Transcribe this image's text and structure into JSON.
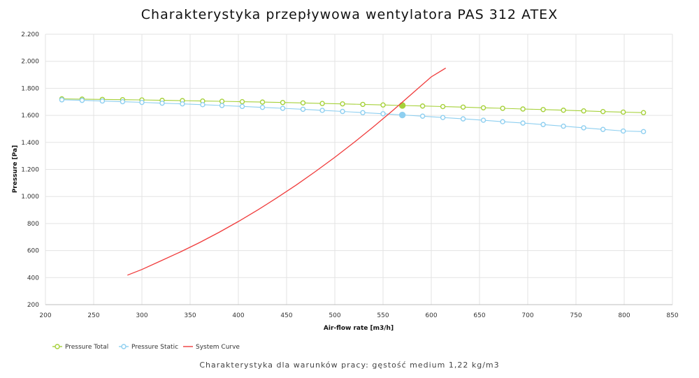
{
  "chart_data": {
    "type": "line",
    "title": "Charakterystyka przepływowa wentylatora PAS 312 ATEX",
    "subtitle": "Charakterystyka dla warunków pracy: gęstość medium 1,22 kg/m3",
    "xlabel": "Air-flow rate [m3/h]",
    "ylabel": "Pressure [Pa]",
    "xlim": [
      200,
      850
    ],
    "ylim": [
      200,
      2200
    ],
    "xticks": [
      200,
      250,
      300,
      350,
      400,
      450,
      500,
      550,
      600,
      650,
      700,
      750,
      800,
      850
    ],
    "xtick_labels": [
      "200",
      "250",
      "300",
      "350",
      "400",
      "450",
      "500",
      "550",
      "600",
      "650",
      "700",
      "750",
      "800",
      "850"
    ],
    "yticks": [
      200,
      400,
      600,
      800,
      1000,
      1200,
      1400,
      1600,
      1800,
      2000,
      2200
    ],
    "ytick_labels": [
      "200",
      "400",
      "600",
      "800",
      "1.000",
      "1.200",
      "1.400",
      "1.600",
      "1.800",
      "2.000",
      "2.200"
    ],
    "grid": true,
    "legend_position": "bottom-left",
    "operating_point_x": 570,
    "series": [
      {
        "name": "Pressure Total",
        "color": "#a6d13a",
        "marker": "circle-open",
        "x": [
          217,
          238,
          259,
          280,
          300,
          321,
          342,
          363,
          383,
          404,
          425,
          446,
          467,
          487,
          508,
          529,
          550,
          570,
          591,
          612,
          633,
          654,
          674,
          695,
          716,
          737,
          758,
          778,
          799,
          820
        ],
        "y": [
          1722,
          1720,
          1718,
          1716,
          1714,
          1711,
          1709,
          1706,
          1704,
          1701,
          1698,
          1695,
          1692,
          1688,
          1685,
          1681,
          1677,
          1673,
          1669,
          1665,
          1661,
          1656,
          1652,
          1647,
          1643,
          1638,
          1633,
          1628,
          1624,
          1620
        ]
      },
      {
        "name": "Pressure Static",
        "color": "#8ecff0",
        "marker": "circle-open",
        "x": [
          217,
          238,
          259,
          280,
          300,
          321,
          342,
          363,
          383,
          404,
          425,
          446,
          467,
          487,
          508,
          529,
          550,
          570,
          591,
          612,
          633,
          654,
          674,
          695,
          716,
          737,
          758,
          778,
          799,
          820
        ],
        "y": [
          1715,
          1711,
          1706,
          1701,
          1696,
          1690,
          1685,
          1679,
          1673,
          1666,
          1659,
          1652,
          1645,
          1637,
          1629,
          1620,
          1612,
          1603,
          1594,
          1584,
          1574,
          1564,
          1553,
          1543,
          1532,
          1520,
          1508,
          1496,
          1484,
          1480
        ]
      },
      {
        "name": "System Curve",
        "color": "#f03c3c",
        "marker": "none",
        "x": [
          285,
          300,
          320,
          340,
          360,
          380,
          400,
          420,
          440,
          460,
          480,
          500,
          520,
          540,
          560,
          580,
          600,
          615
        ],
        "y": [
          418,
          460,
          525,
          590,
          660,
          735,
          815,
          900,
          990,
          1085,
          1185,
          1290,
          1400,
          1515,
          1635,
          1760,
          1885,
          1950
        ]
      }
    ]
  }
}
